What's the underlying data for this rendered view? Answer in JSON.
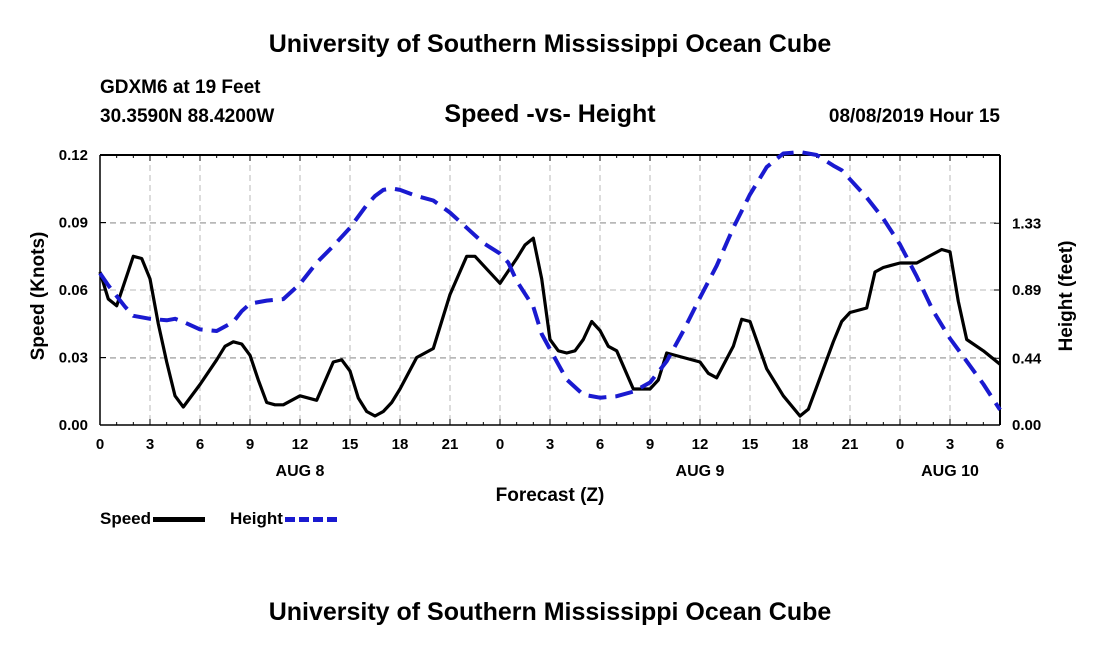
{
  "header": {
    "title": "University of Southern Mississippi Ocean Cube",
    "station": "GDXM6 at 19 Feet",
    "coords": "30.3590N 88.4200W",
    "subtitle": "Speed -vs- Height",
    "datetime": "08/08/2019 Hour 15"
  },
  "footer": {
    "title": "University of Southern Mississippi Ocean Cube"
  },
  "legend": {
    "speed": "Speed",
    "height": "Height"
  },
  "colors": {
    "speed": "#000000",
    "height": "#1a1ad0",
    "grid": "#b8b8b8"
  },
  "chart_data": {
    "type": "line",
    "title": "Speed -vs- Height",
    "xlabel": "Forecast (Z)",
    "ylabel_left": "Speed (Knots)",
    "ylabel_right": "Height (feet)",
    "xlim": [
      0,
      54
    ],
    "ylim_left": [
      0,
      0.12
    ],
    "ylim_right": [
      0,
      1.78
    ],
    "grid": true,
    "x_ticks": [
      0,
      3,
      6,
      9,
      12,
      15,
      18,
      21,
      24,
      27,
      30,
      33,
      36,
      39,
      42,
      45,
      48,
      51,
      54
    ],
    "x_tick_labels": [
      "0",
      "3",
      "6",
      "9",
      "12",
      "15",
      "18",
      "21",
      "0",
      "3",
      "6",
      "9",
      "12",
      "15",
      "18",
      "21",
      "0",
      "3",
      "6"
    ],
    "day_labels": [
      {
        "x": 12,
        "label": "AUG 8"
      },
      {
        "x": 36,
        "label": "AUG 9"
      },
      {
        "x": 51,
        "label": "AUG 10"
      }
    ],
    "left_ticks": [
      0,
      0.03,
      0.06,
      0.09,
      0.12
    ],
    "left_tick_labels": [
      "0.00",
      "0.03",
      "0.06",
      "0.09",
      "0.12"
    ],
    "right_ticks": [
      0,
      0.44,
      0.89,
      1.33
    ],
    "right_tick_labels": [
      "0.00",
      "0.44",
      "0.89",
      "1.33"
    ],
    "series": [
      {
        "name": "Speed",
        "axis": "left",
        "style": "solid",
        "x": [
          0,
          0.5,
          1,
          2,
          2.5,
          3,
          3.5,
          4,
          4.5,
          5,
          6,
          7,
          7.5,
          8,
          8.5,
          9,
          9.5,
          10,
          10.5,
          11,
          12,
          13,
          14,
          14.5,
          15,
          15.5,
          16,
          16.5,
          17,
          17.5,
          18,
          19,
          20,
          21,
          22,
          22.5,
          23,
          24,
          25,
          25.5,
          26,
          26.5,
          27,
          27.5,
          28,
          28.5,
          29,
          29.5,
          30,
          30.5,
          31,
          32,
          33,
          33.5,
          34,
          35,
          36,
          36.5,
          37,
          38,
          38.5,
          39,
          40,
          41,
          42,
          42.5,
          43,
          44,
          44.5,
          45,
          46,
          46.5,
          47,
          48,
          48.5,
          49,
          49.5,
          50,
          50.5,
          51,
          51.5,
          52,
          53,
          54
        ],
        "values": [
          0.068,
          0.056,
          0.053,
          0.075,
          0.074,
          0.065,
          0.045,
          0.028,
          0.013,
          0.008,
          0.018,
          0.029,
          0.035,
          0.037,
          0.036,
          0.031,
          0.02,
          0.01,
          0.009,
          0.009,
          0.013,
          0.011,
          0.028,
          0.029,
          0.024,
          0.012,
          0.006,
          0.004,
          0.006,
          0.01,
          0.016,
          0.03,
          0.034,
          0.058,
          0.075,
          0.075,
          0.071,
          0.063,
          0.074,
          0.08,
          0.083,
          0.065,
          0.038,
          0.033,
          0.032,
          0.033,
          0.038,
          0.046,
          0.042,
          0.035,
          0.033,
          0.016,
          0.016,
          0.02,
          0.032,
          0.03,
          0.028,
          0.023,
          0.021,
          0.035,
          0.047,
          0.046,
          0.025,
          0.013,
          0.004,
          0.007,
          0.017,
          0.037,
          0.046,
          0.05,
          0.052,
          0.068,
          0.07,
          0.072,
          0.072,
          0.072,
          0.074,
          0.076,
          0.078,
          0.077,
          0.055,
          0.038,
          0.033,
          0.027
        ]
      },
      {
        "name": "Height",
        "axis": "right",
        "style": "dashed",
        "x": [
          0,
          0.5,
          1,
          1.5,
          2,
          3,
          4,
          4.5,
          5,
          6,
          7,
          8,
          8.5,
          9,
          10,
          11,
          12,
          13,
          14,
          15,
          16,
          16.5,
          17,
          17.5,
          18,
          19,
          20,
          21,
          22,
          23,
          24,
          24.5,
          25,
          26,
          26.5,
          27,
          27.5,
          28,
          29,
          30,
          31,
          32,
          33,
          34,
          35,
          36,
          37,
          38,
          39,
          40,
          41,
          42,
          43,
          44,
          44.5,
          45,
          46,
          47,
          48,
          49,
          50,
          51,
          52,
          53,
          54
        ],
        "values": [
          1.0,
          0.92,
          0.85,
          0.78,
          0.72,
          0.7,
          0.69,
          0.7,
          0.68,
          0.63,
          0.62,
          0.68,
          0.75,
          0.8,
          0.82,
          0.83,
          0.93,
          1.07,
          1.18,
          1.3,
          1.45,
          1.51,
          1.55,
          1.56,
          1.55,
          1.51,
          1.48,
          1.4,
          1.3,
          1.2,
          1.13,
          1.07,
          0.95,
          0.78,
          0.6,
          0.5,
          0.4,
          0.3,
          0.2,
          0.18,
          0.19,
          0.22,
          0.28,
          0.42,
          0.62,
          0.84,
          1.05,
          1.3,
          1.52,
          1.7,
          1.79,
          1.8,
          1.78,
          1.71,
          1.68,
          1.62,
          1.5,
          1.36,
          1.19,
          0.98,
          0.75,
          0.57,
          0.42,
          0.27,
          0.1
        ]
      }
    ]
  }
}
